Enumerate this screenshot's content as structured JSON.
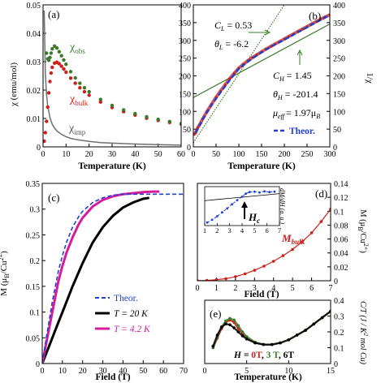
{
  "chart_data": [
    {
      "type": "line",
      "panel_label": "(a)",
      "xlabel": "Temperature (K)",
      "ylabel": "χ (emu/mol)",
      "xlim": [
        0,
        60
      ],
      "ylim": [
        0,
        0.05
      ],
      "xticks": [
        0,
        10,
        20,
        30,
        40,
        50,
        60
      ],
      "yticks": [
        0,
        0.01,
        0.02,
        0.03,
        0.04,
        0.05
      ],
      "annotations": [
        {
          "text": "χ",
          "sub": "obs",
          "color": "#3a7a2a"
        },
        {
          "text": "χ",
          "sub": "bulk",
          "color": "#cc1f1a"
        },
        {
          "text": "χ",
          "sub": "imp",
          "color": "#555555"
        }
      ],
      "series": [
        {
          "name": "obs",
          "color": "#3a7a2a",
          "x": [
            1.5,
            2,
            2.5,
            3,
            3.5,
            4,
            5,
            6,
            7,
            8,
            9,
            10,
            12,
            14,
            16,
            18,
            20,
            25,
            30,
            35,
            40,
            45,
            50,
            55,
            60
          ],
          "y": [
            0.033,
            0.031,
            0.0305,
            0.0315,
            0.033,
            0.0345,
            0.0355,
            0.0348,
            0.0335,
            0.0321,
            0.0306,
            0.0291,
            0.0265,
            0.0243,
            0.0224,
            0.0208,
            0.0194,
            0.0167,
            0.0146,
            0.013,
            0.0117,
            0.0106,
            0.0097,
            0.0089,
            0.0082
          ]
        },
        {
          "name": "bulk",
          "color": "#cc1f1a",
          "x": [
            0.5,
            1,
            1.5,
            2,
            2.5,
            3,
            3.5,
            4,
            5,
            6,
            7,
            8,
            9,
            10,
            12,
            14,
            16,
            18,
            20,
            25,
            30,
            35,
            40,
            45,
            50,
            55,
            60
          ],
          "y": [
            0.002,
            0.005,
            0.009,
            0.014,
            0.019,
            0.023,
            0.026,
            0.028,
            0.0295,
            0.0298,
            0.0293,
            0.0284,
            0.0274,
            0.0263,
            0.0242,
            0.0224,
            0.0208,
            0.0194,
            0.0182,
            0.0158,
            0.0139,
            0.0124,
            0.0112,
            0.0101,
            0.0093,
            0.0086,
            0.008
          ]
        },
        {
          "name": "imp",
          "color": "#707070",
          "x": [
            0.5,
            1,
            1.5,
            2,
            3,
            4,
            5,
            6,
            8,
            10,
            12,
            15,
            20,
            25,
            30,
            40,
            50,
            60
          ],
          "y": [
            0.048,
            0.026,
            0.0185,
            0.0145,
            0.0103,
            0.008,
            0.0066,
            0.0056,
            0.0044,
            0.0036,
            0.003,
            0.0025,
            0.0019,
            0.0015,
            0.0013,
            0.001,
            0.0008,
            0.0006
          ]
        }
      ]
    },
    {
      "type": "line",
      "panel_label": "(b)",
      "xlabel": "Temperature (K)",
      "ylabel": "1/χ",
      "xlim": [
        0,
        300
      ],
      "ylim": [
        0,
        400
      ],
      "xticks": [
        0,
        50,
        100,
        150,
        200,
        250,
        300
      ],
      "yticks": [
        0,
        50,
        100,
        150,
        200,
        250,
        300,
        350,
        400
      ],
      "annotations": {
        "CL": "C",
        "CL_sub": "L",
        "CL_val": "= 0.53",
        "thL": "θ",
        "thL_sub": "L",
        "thL_val": "= -6.2",
        "CH": "C",
        "CH_sub": "H",
        "CH_val": "= 1.45",
        "thH": "θ",
        "thH_sub": "H",
        "thH_val": "= -201.4",
        "mu": "μ",
        "mu_sub": "eff",
        "mu_val": "= 1.97μ",
        "mu_val_sub": "B"
      },
      "legend": [
        {
          "label": "Theor.",
          "color": "#1f3fd0",
          "style": "dashed"
        }
      ],
      "series": [
        {
          "name": "data",
          "color": "#cc1f1a",
          "x": [
            2,
            5,
            10,
            15,
            20,
            30,
            40,
            50,
            60,
            70,
            80,
            90,
            100,
            110,
            120,
            130,
            140,
            150,
            160,
            170,
            180,
            190,
            200,
            210,
            220,
            230,
            240,
            250,
            260,
            270,
            280,
            290,
            300
          ],
          "y": [
            35,
            40,
            55,
            65,
            78,
            100,
            120,
            140,
            158,
            175,
            192,
            208,
            222,
            233,
            243,
            252,
            260,
            268,
            276,
            283,
            290,
            297,
            304,
            311,
            318,
            325,
            332,
            339,
            346,
            353,
            360,
            366,
            372
          ]
        },
        {
          "name": "Theor.",
          "color": "#1f3fd0",
          "x": [
            5,
            20,
            40,
            60,
            80,
            100,
            120,
            140,
            160,
            180,
            200,
            220,
            240,
            260,
            280,
            300
          ],
          "y": [
            40,
            76,
            118,
            154,
            188,
            220,
            240,
            258,
            274,
            289,
            302,
            316,
            330,
            344,
            358,
            372
          ]
        },
        {
          "name": "fit-low",
          "color": "#3a7a2a",
          "x": [
            0,
            200
          ],
          "y": [
            12,
            400
          ]
        },
        {
          "name": "fit-high",
          "color": "#3a7a2a",
          "x": [
            0,
            300
          ],
          "y": [
            139,
            346
          ]
        }
      ]
    },
    {
      "type": "line",
      "panel_label": "(c)",
      "xlabel": "Field (T)",
      "ylabel": "M (μB/Cu2+)",
      "xlim": [
        0,
        70
      ],
      "ylim": [
        0,
        0.35
      ],
      "xticks": [
        0,
        10,
        20,
        30,
        40,
        50,
        60,
        70
      ],
      "yticks": [
        0,
        0.05,
        0.1,
        0.15,
        0.2,
        0.25,
        0.3,
        0.35
      ],
      "legend": [
        {
          "label": "Theor.",
          "color": "#1f3fd0",
          "style": "dashed"
        },
        {
          "label": "T = 20 K",
          "color": "#000000",
          "style": "solid"
        },
        {
          "label": "T = 4.2 K",
          "color": "#d81b9c",
          "style": "solid"
        }
      ],
      "series": [
        {
          "name": "Theor.",
          "color": "#1f3fd0",
          "x": [
            0,
            2,
            5,
            8,
            10,
            12,
            15,
            18,
            20,
            25,
            30,
            35,
            40,
            45,
            50,
            60,
            70
          ],
          "y": [
            0,
            0.05,
            0.12,
            0.18,
            0.21,
            0.235,
            0.265,
            0.285,
            0.296,
            0.313,
            0.322,
            0.327,
            0.329,
            0.329,
            0.329,
            0.329,
            0.329
          ]
        },
        {
          "name": "T = 20 K",
          "color": "#000000",
          "x": [
            0,
            3,
            6,
            10,
            15,
            20,
            25,
            30,
            35,
            40,
            45,
            50,
            53
          ],
          "y": [
            0,
            0.03,
            0.06,
            0.1,
            0.15,
            0.195,
            0.235,
            0.265,
            0.287,
            0.303,
            0.313,
            0.32,
            0.322
          ]
        },
        {
          "name": "T = 4.2 K",
          "color": "#d81b9c",
          "x": [
            0,
            2,
            4,
            6,
            8,
            10,
            12,
            15,
            18,
            20,
            25,
            30,
            35,
            40,
            45,
            50,
            55,
            58
          ],
          "y": [
            0,
            0.04,
            0.08,
            0.12,
            0.16,
            0.19,
            0.215,
            0.245,
            0.27,
            0.283,
            0.305,
            0.318,
            0.325,
            0.329,
            0.331,
            0.333,
            0.334,
            0.334
          ]
        }
      ]
    },
    {
      "type": "line",
      "panel_label": "(d)",
      "xlabel": "Field (T)",
      "ylabel": "M (μB/Cu2+)",
      "xlim": [
        0,
        7
      ],
      "ylim": [
        0,
        0.14
      ],
      "xticks": [
        0,
        1,
        2,
        3,
        4,
        5,
        6,
        7
      ],
      "yticks": [
        0,
        0.02,
        0.04,
        0.06,
        0.08,
        0.1,
        0.12,
        0.14
      ],
      "series_label": "M",
      "series_label_sub": "bulk",
      "series": [
        {
          "name": "bulk",
          "color": "#cc1f1a",
          "x": [
            0,
            0.5,
            1,
            1.5,
            2,
            2.5,
            3,
            3.5,
            4,
            4.5,
            5,
            5.5,
            6,
            6.5,
            7
          ],
          "y": [
            0,
            0.0005,
            0.0015,
            0.003,
            0.006,
            0.01,
            0.015,
            0.021,
            0.028,
            0.036,
            0.045,
            0.056,
            0.069,
            0.085,
            0.103
          ]
        }
      ],
      "inset": {
        "ylabel": "dM/dH (a. u.)",
        "xlim": [
          1,
          7
        ],
        "xticks": [
          1,
          2,
          3,
          4,
          5,
          6,
          7
        ],
        "marker_label": "H",
        "marker_label_sub": "c",
        "series": [
          {
            "name": "dM/dH",
            "color": "#1f3fd0",
            "x": [
              1.2,
              1.6,
              2,
              2.4,
              2.8,
              3.2,
              3.6,
              4,
              4.3,
              4.6,
              5,
              5.4,
              5.8,
              6.2,
              6.6
            ],
            "y": [
              0.08,
              0.15,
              0.24,
              0.34,
              0.44,
              0.55,
              0.65,
              0.74,
              0.82,
              0.86,
              0.87,
              0.85,
              0.88,
              0.86,
              0.87
            ]
          },
          {
            "name": "fit",
            "color": "#000000",
            "x": [
              1,
              2,
              3,
              4,
              5,
              6,
              7
            ],
            "y": [
              0.64,
              0.67,
              0.7,
              0.73,
              0.76,
              0.79,
              0.82
            ]
          }
        ]
      }
    },
    {
      "type": "scatter",
      "panel_label": "(e)",
      "xlabel": "Temperature (K)",
      "ylabel": "C/T (J / K2 mol Cu)",
      "xlim": [
        0,
        15
      ],
      "ylim": [
        0,
        0.4
      ],
      "xticks": [
        0,
        5,
        10,
        15
      ],
      "yticks": [
        0,
        0.1,
        0.2,
        0.3,
        0.4
      ],
      "legend_text": {
        "prefix": "H = ",
        "a": "0T",
        "sep1": ", ",
        "b": "3 T",
        "sep2": ", ",
        "c": "6T"
      },
      "series": [
        {
          "name": "0T",
          "color": "#cc1f1a",
          "x": [
            1,
            1.5,
            2,
            2.5,
            3,
            3.5,
            4,
            4.5,
            5,
            6,
            7,
            8,
            9,
            10,
            11,
            12,
            13,
            14,
            15
          ],
          "y": [
            0.1,
            0.16,
            0.22,
            0.26,
            0.275,
            0.26,
            0.22,
            0.19,
            0.16,
            0.13,
            0.12,
            0.12,
            0.13,
            0.15,
            0.18,
            0.21,
            0.25,
            0.29,
            0.33
          ]
        },
        {
          "name": "3 T",
          "color": "#3a7a2a",
          "x": [
            1,
            1.5,
            2,
            2.5,
            3,
            3.5,
            4,
            4.5,
            5,
            6,
            7,
            8,
            9,
            10,
            11,
            12,
            13,
            14,
            15
          ],
          "y": [
            0.1,
            0.17,
            0.23,
            0.27,
            0.285,
            0.275,
            0.24,
            0.2,
            0.17,
            0.135,
            0.12,
            0.12,
            0.13,
            0.15,
            0.18,
            0.21,
            0.25,
            0.29,
            0.33
          ]
        },
        {
          "name": "6T",
          "color": "#000000",
          "x": [
            1,
            1.5,
            2,
            2.5,
            3,
            3.5,
            4,
            4.5,
            5,
            6,
            7,
            8,
            9,
            10,
            11,
            12,
            13,
            14,
            15
          ],
          "y": [
            0.11,
            0.18,
            0.23,
            0.25,
            0.245,
            0.225,
            0.2,
            0.175,
            0.155,
            0.13,
            0.12,
            0.12,
            0.13,
            0.15,
            0.18,
            0.21,
            0.25,
            0.29,
            0.33
          ]
        }
      ]
    }
  ]
}
